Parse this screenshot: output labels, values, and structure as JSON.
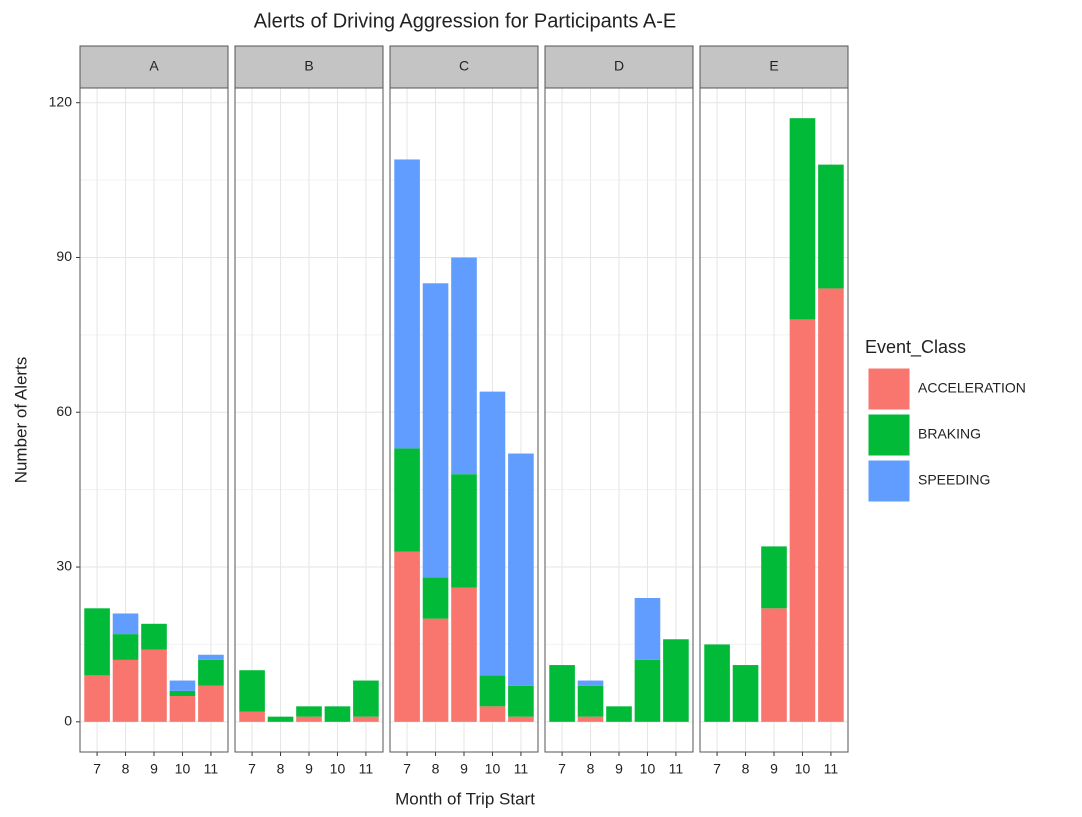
{
  "chart_data": {
    "type": "bar",
    "stacked": true,
    "title": "Alerts of Driving Aggression for Participants A-E",
    "xlabel": "Month of Trip Start",
    "ylabel": "Number of Alerts",
    "legend_title": "Event_Class",
    "legend_position": "right",
    "facets": [
      "A",
      "B",
      "C",
      "D",
      "E"
    ],
    "categories": [
      "7",
      "8",
      "9",
      "10",
      "11"
    ],
    "series": [
      {
        "name": "ACCELERATION",
        "color": "#F8766D",
        "values": [
          [
            9,
            12,
            14,
            5,
            7
          ],
          [
            2,
            0,
            1,
            0,
            1
          ],
          [
            33,
            20,
            26,
            3,
            1
          ],
          [
            0,
            1,
            0,
            0,
            0
          ],
          [
            0,
            0,
            22,
            78,
            84
          ]
        ]
      },
      {
        "name": "BRAKING",
        "color": "#00BA38",
        "values": [
          [
            13,
            5,
            5,
            1,
            5
          ],
          [
            8,
            1,
            2,
            3,
            7
          ],
          [
            20,
            8,
            22,
            6,
            6
          ],
          [
            11,
            6,
            3,
            12,
            16
          ],
          [
            15,
            11,
            12,
            39,
            24
          ]
        ]
      },
      {
        "name": "SPEEDING",
        "color": "#619CFF",
        "values": [
          [
            0,
            4,
            0,
            2,
            1
          ],
          [
            0,
            0,
            0,
            0,
            0
          ],
          [
            56,
            57,
            42,
            55,
            45
          ],
          [
            0,
            1,
            0,
            12,
            0
          ],
          [
            0,
            0,
            0,
            0,
            0
          ]
        ]
      }
    ],
    "ylim": [
      -5.85,
      122.85
    ],
    "yticks": [
      0,
      30,
      60,
      90,
      120
    ],
    "grid": true
  }
}
